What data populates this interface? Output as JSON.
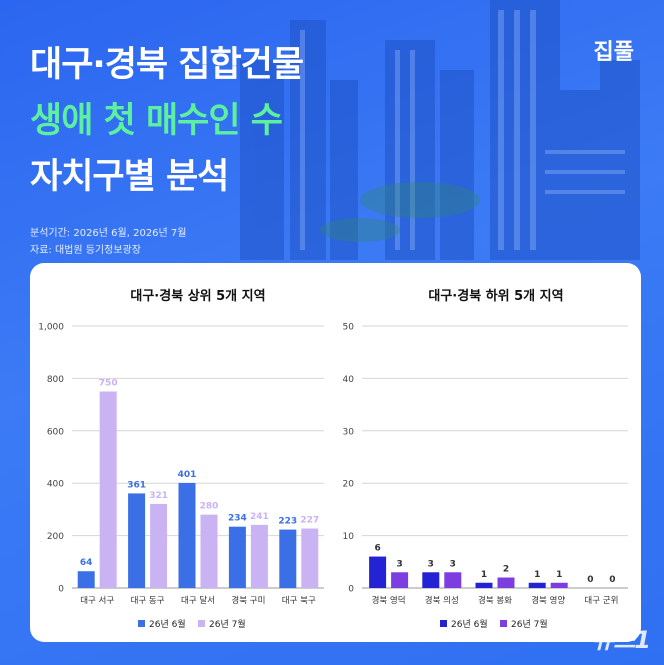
{
  "header": {
    "title_line1": "대구·경북 집합건물",
    "title_line2": "생애 첫 매수인 수",
    "title_line3": "자치구별 분석",
    "brand": "집풀",
    "period": "분석기간: 2026년 6월, 2026년 7월",
    "source": "자료: 대법원 등기정보광장"
  },
  "watermark": "뉴스1",
  "colors": {
    "background": "#3a78f4",
    "title_highlight": "#5cf0a0",
    "june_bar": "#3b6fe6",
    "july_bar": "#c9b3f3",
    "june_bar_right": "#2323d3",
    "july_bar_right": "#7c3ee0"
  },
  "chart_data": [
    {
      "type": "bar",
      "title": "대구·경북 상위 5개 지역",
      "categories": [
        "대구 서구",
        "대구 동구",
        "대구 달서",
        "경북 구미",
        "대구 북구"
      ],
      "series": [
        {
          "name": "26년 6월",
          "values": [
            64,
            361,
            401,
            234,
            223
          ]
        },
        {
          "name": "26년 7월",
          "values": [
            750,
            321,
            280,
            241,
            227
          ]
        }
      ],
      "ylim": [
        0,
        1000
      ],
      "yticks": [
        "0",
        "200",
        "400",
        "600",
        "800",
        "1,000"
      ],
      "ytick_values": [
        0,
        200,
        400,
        600,
        800,
        1000
      ],
      "grid": true,
      "legend": "bottom"
    },
    {
      "type": "bar",
      "title": "대구·경북 하위 5개 지역",
      "categories": [
        "경북 영덕",
        "경북 의성",
        "경북 봉화",
        "경북 영양",
        "대구 군위"
      ],
      "series": [
        {
          "name": "26년 6월",
          "values": [
            6,
            3,
            1,
            1,
            0
          ]
        },
        {
          "name": "26년 7월",
          "values": [
            3,
            3,
            2,
            1,
            0
          ]
        }
      ],
      "ylim": [
        0,
        50
      ],
      "yticks": [
        "0",
        "10",
        "20",
        "30",
        "40",
        "50"
      ],
      "ytick_values": [
        0,
        10,
        20,
        30,
        40,
        50
      ],
      "grid": true,
      "legend": "bottom"
    }
  ]
}
